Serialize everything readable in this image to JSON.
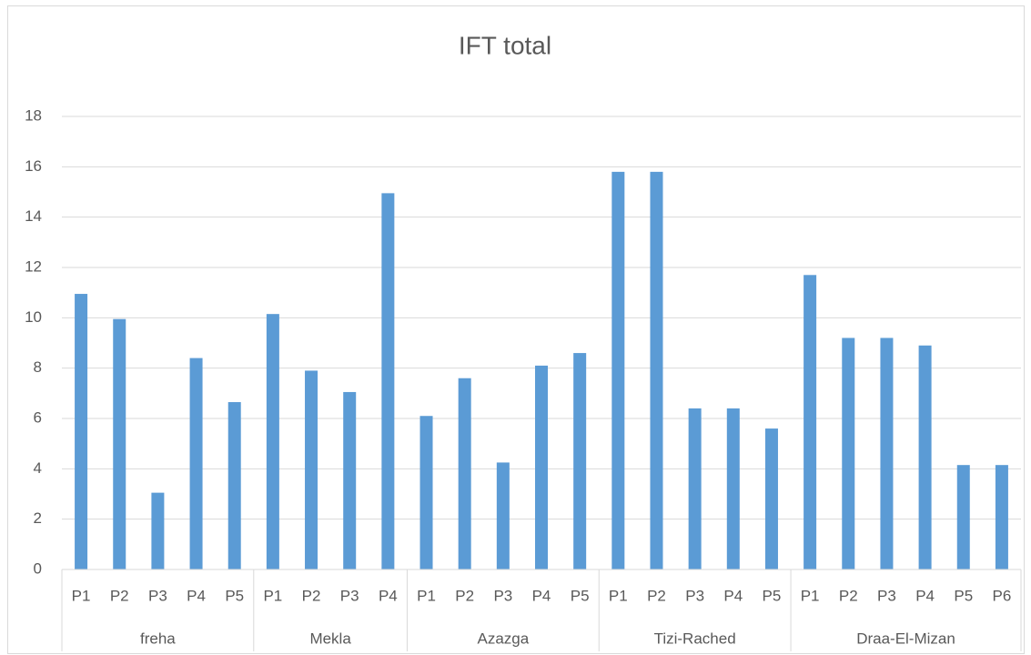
{
  "chart_data": {
    "type": "bar",
    "title": "IFT total",
    "color": "#5b9bd5",
    "grid": true,
    "ylim": [
      0,
      18
    ],
    "yticks": [
      0,
      2,
      4,
      6,
      8,
      10,
      12,
      14,
      16,
      18
    ],
    "groups": [
      {
        "label": "freha",
        "categories": [
          "P1",
          "P2",
          "P3",
          "P4",
          "P5"
        ],
        "values": [
          10.95,
          9.95,
          3.05,
          8.4,
          6.65
        ]
      },
      {
        "label": "Mekla",
        "categories": [
          "P1",
          "P2",
          "P3",
          "P4"
        ],
        "values": [
          10.15,
          7.9,
          7.05,
          14.95
        ]
      },
      {
        "label": "Azazga",
        "categories": [
          "P1",
          "P2",
          "P3",
          "P4",
          "P5"
        ],
        "values": [
          6.1,
          7.6,
          4.25,
          8.1,
          8.6
        ]
      },
      {
        "label": "Tizi-Rached",
        "categories": [
          "P1",
          "P2",
          "P3",
          "P4",
          "P5"
        ],
        "values": [
          15.8,
          15.8,
          6.4,
          6.4,
          5.6
        ]
      },
      {
        "label": "Draa-El-Mizan",
        "categories": [
          "P1",
          "P2",
          "P3",
          "P4",
          "P5",
          "P6"
        ],
        "values": [
          11.7,
          9.2,
          9.2,
          8.9,
          4.15,
          4.15
        ]
      }
    ]
  }
}
